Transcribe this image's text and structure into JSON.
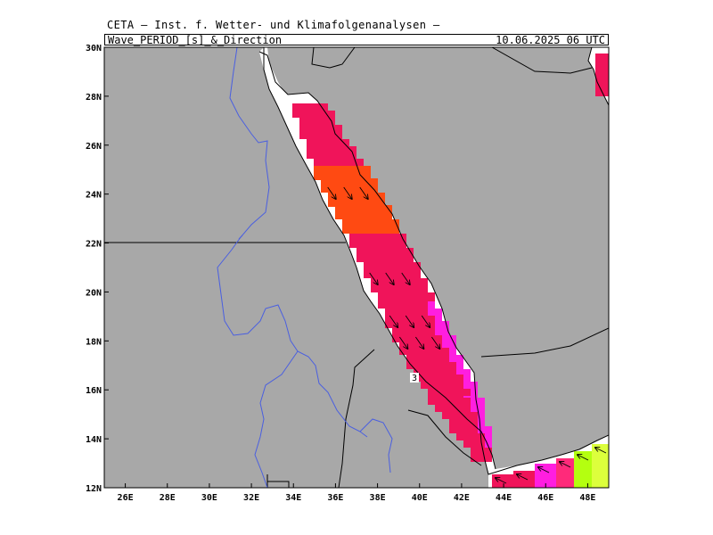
{
  "header": {
    "organization": "CETA — Inst. f. Wetter- und Klimafolgenanalysen —",
    "variable_title": "Wave_PERIOD_[s]_&_Direction",
    "valid_time": "10.06.2025 06 UTC"
  },
  "map": {
    "projection": "lat-lon",
    "lon_range": [
      25,
      49
    ],
    "lat_range": [
      12,
      30
    ],
    "lon_ticks": [
      "26E",
      "28E",
      "30E",
      "32E",
      "34E",
      "36E",
      "38E",
      "40E",
      "42E",
      "44E",
      "46E",
      "48E"
    ],
    "lat_ticks": [
      "30N",
      "28N",
      "26N",
      "24N",
      "22N",
      "20N",
      "18N",
      "16N",
      "14N",
      "12N"
    ],
    "land_color": "#a8a8a8",
    "sea_color": "#ffffff",
    "river_color": "#4a5fe0",
    "border_color": "#000000",
    "contour_label": "3",
    "field_colors": {
      "crimson": "#f0145a",
      "orange_red": "#ff4a12",
      "magenta": "#ff1ee0",
      "pink": "#ff2a7a",
      "lime": "#b4ff10",
      "yellow_green": "#dcff3c"
    },
    "arrow_icon": "direction-arrow-icon"
  }
}
